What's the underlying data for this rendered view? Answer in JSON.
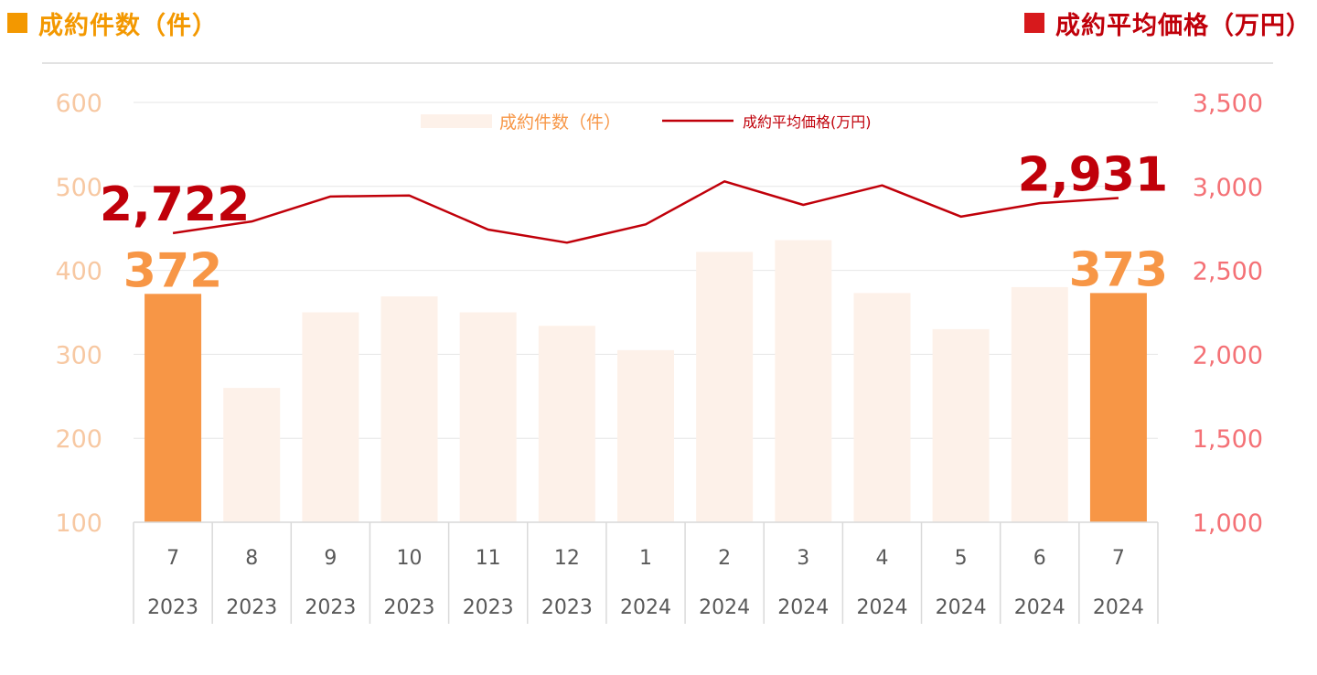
{
  "header": {
    "left_title": "成約件数（件）",
    "right_title": "成約平均価格（万円）"
  },
  "colors": {
    "count_axis": "#f7c8a2",
    "count_title": "#f39800",
    "price_title": "#c0000a",
    "price_axis": "#f47176",
    "bar_highlight": "#f79646",
    "bar_faint": "#fdf1e9",
    "line": "#c0000a",
    "count_annotation": "#f79646",
    "price_annotation": "#c0000a"
  },
  "chart_data": {
    "type": "bar+line",
    "categories": [
      [
        "7",
        "2023"
      ],
      [
        "8",
        "2023"
      ],
      [
        "9",
        "2023"
      ],
      [
        "10",
        "2023"
      ],
      [
        "11",
        "2023"
      ],
      [
        "12",
        "2023"
      ],
      [
        "1",
        "2024"
      ],
      [
        "2",
        "2024"
      ],
      [
        "3",
        "2024"
      ],
      [
        "4",
        "2024"
      ],
      [
        "5",
        "2024"
      ],
      [
        "6",
        "2024"
      ],
      [
        "7",
        "2024"
      ]
    ],
    "series": [
      {
        "name": "成約件数（件）",
        "type": "bar",
        "axis": "left",
        "values": [
          372,
          260,
          350,
          369,
          350,
          334,
          305,
          422,
          436,
          373,
          330,
          380,
          373
        ],
        "highlight": [
          0,
          12
        ]
      },
      {
        "name": "成約平均価格(万円)",
        "type": "line",
        "axis": "right",
        "values": [
          2722,
          2791,
          2940,
          2946,
          2743,
          2665,
          2774,
          3030,
          2890,
          3006,
          2820,
          2900,
          2931
        ]
      }
    ],
    "left_axis": {
      "min": 100,
      "max": 600,
      "ticks": [
        "100",
        "200",
        "300",
        "400",
        "500",
        "600"
      ]
    },
    "right_axis": {
      "min": 1000,
      "max": 3500,
      "ticks": [
        "1,000",
        "1,500",
        "2,000",
        "2,500",
        "3,000",
        "3,500"
      ]
    },
    "annotations": {
      "first_count": "372",
      "last_count": "373",
      "first_price": "2,722",
      "last_price": "2,931"
    },
    "grid": true,
    "legend_position": "top-center"
  }
}
